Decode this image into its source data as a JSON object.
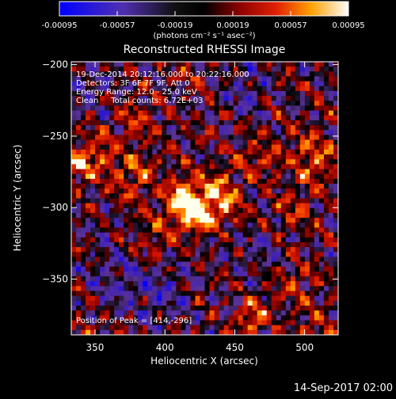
{
  "chart_data": {
    "type": "heatmap",
    "title": "Reconstructed RHESSI Image",
    "xlabel": "Heliocentric X (arcsec)",
    "ylabel": "Heliocentric Y (arcsec)",
    "xlim": [
      333,
      524
    ],
    "ylim": [
      -389,
      -198
    ],
    "x_ticks": [
      350,
      400,
      450,
      500
    ],
    "y_ticks": [
      -200,
      -250,
      -300,
      -350
    ],
    "colorbar": {
      "range": [
        -0.00095,
        0.00095
      ],
      "ticks": [
        "-0.00095",
        "-0.00057",
        "-0.00019",
        "0.00019",
        "0.00057",
        "0.00095"
      ],
      "units": "(photons cm⁻² s⁻¹ asec⁻²)"
    },
    "annotations": {
      "time_range": "19-Dec-2014 20:12:16.000 to 20:22:16.000",
      "detectors": "Detectors: 3F 6F 7F 9F, Att 0",
      "energy_range": "Energy Range: 12.0 - 25.0 keV",
      "method_counts": "Clean     Total counts: 6.72E+03",
      "peak": "Position of Peak = [414,-296]"
    },
    "peak_position": [
      414,
      -296
    ],
    "blobs": [
      {
        "x": 414,
        "y": -296,
        "amp": 1.05,
        "sigma": 10
      },
      {
        "x": 425,
        "y": -305,
        "amp": 0.7,
        "sigma": 9
      },
      {
        "x": 445,
        "y": -298,
        "amp": 0.6,
        "sigma": 8
      },
      {
        "x": 437,
        "y": -283,
        "amp": 0.5,
        "sigma": 8
      },
      {
        "x": 335,
        "y": -272,
        "amp": 0.6,
        "sigma": 9
      },
      {
        "x": 352,
        "y": -262,
        "amp": 0.45,
        "sigma": 10
      },
      {
        "x": 378,
        "y": -238,
        "amp": 0.4,
        "sigma": 10
      },
      {
        "x": 378,
        "y": -278,
        "amp": 0.45,
        "sigma": 12
      },
      {
        "x": 465,
        "y": -266,
        "amp": 0.4,
        "sigma": 10
      },
      {
        "x": 505,
        "y": -265,
        "amp": 0.55,
        "sigma": 12
      },
      {
        "x": 490,
        "y": -303,
        "amp": 0.35,
        "sigma": 10
      },
      {
        "x": 395,
        "y": -320,
        "amp": 0.35,
        "sigma": 10
      },
      {
        "x": 462,
        "y": -378,
        "amp": 0.55,
        "sigma": 8
      },
      {
        "x": 492,
        "y": -355,
        "amp": 0.35,
        "sigma": 10
      },
      {
        "x": 505,
        "y": -385,
        "amp": 0.4,
        "sigma": 8
      },
      {
        "x": 345,
        "y": -395,
        "amp": 0.35,
        "sigma": 10
      },
      {
        "x": 420,
        "y": -210,
        "amp": 0.2,
        "sigma": 10
      },
      {
        "x": 400,
        "y": -360,
        "amp": -0.35,
        "sigma": 14
      },
      {
        "x": 365,
        "y": -350,
        "amp": -0.3,
        "sigma": 14
      },
      {
        "x": 470,
        "y": -330,
        "amp": -0.2,
        "sigma": 12
      },
      {
        "x": 345,
        "y": -215,
        "amp": -0.25,
        "sigma": 14
      },
      {
        "x": 455,
        "y": -220,
        "amp": -0.25,
        "sigma": 14
      }
    ]
  },
  "footer": {
    "timestamp": "14-Sep-2017 02:00"
  }
}
